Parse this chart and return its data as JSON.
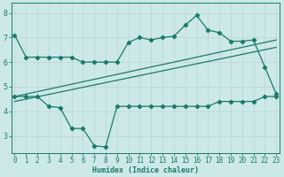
{
  "xlabel": "Humidex (Indice chaleur)",
  "bg_color": "#cce8e8",
  "grid_color_major": "#aacccc",
  "grid_color_minor": "#ddeaea",
  "line_color": "#1a7a6e",
  "line1_x": [
    0,
    1,
    2,
    3,
    4,
    5,
    6,
    7,
    8,
    9,
    10,
    11,
    12,
    13,
    14,
    15,
    16,
    17,
    18,
    19,
    20,
    21,
    22,
    23
  ],
  "line1_y": [
    7.1,
    6.2,
    6.2,
    6.2,
    6.2,
    6.2,
    6.0,
    6.0,
    6.0,
    6.0,
    6.8,
    7.0,
    6.9,
    7.0,
    7.05,
    7.5,
    7.9,
    7.3,
    7.2,
    6.85,
    6.85,
    6.9,
    5.8,
    4.7
  ],
  "line2_x": [
    0,
    23
  ],
  "line2_y": [
    4.6,
    6.9
  ],
  "line3_x": [
    0,
    23
  ],
  "line3_y": [
    4.4,
    6.6
  ],
  "line4_x": [
    0,
    1,
    2,
    3,
    4,
    5,
    6,
    7,
    8,
    9,
    10,
    11,
    12,
    13,
    14,
    15,
    16,
    17,
    18,
    19,
    20,
    21,
    22,
    23
  ],
  "line4_y": [
    4.6,
    4.6,
    4.6,
    4.2,
    4.15,
    3.3,
    3.3,
    2.6,
    2.55,
    4.2,
    4.2,
    4.2,
    4.2,
    4.2,
    4.2,
    4.2,
    4.2,
    4.2,
    4.4,
    4.4,
    4.4,
    4.4,
    4.6,
    4.6
  ],
  "ylim": [
    2.3,
    8.4
  ],
  "xlim": [
    -0.3,
    23.3
  ],
  "yticks": [
    3,
    4,
    5,
    6,
    7,
    8
  ],
  "xticks": [
    0,
    1,
    2,
    3,
    4,
    5,
    6,
    7,
    8,
    9,
    10,
    11,
    12,
    13,
    14,
    15,
    16,
    17,
    18,
    19,
    20,
    21,
    22,
    23
  ]
}
